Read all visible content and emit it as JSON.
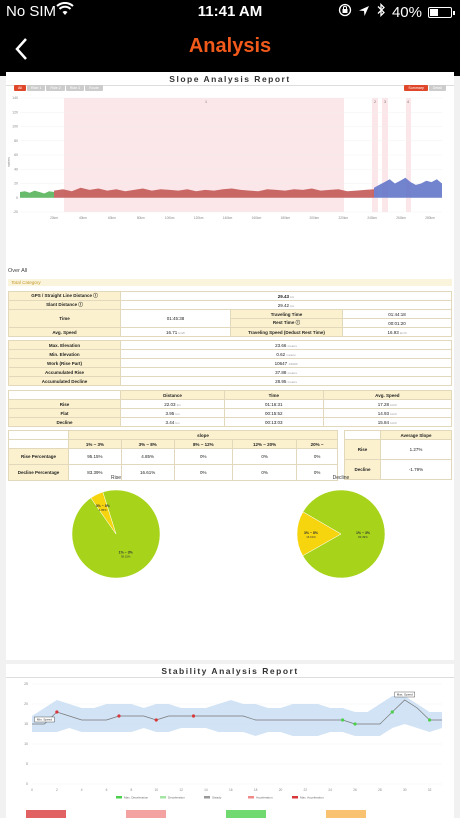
{
  "status": {
    "carrier": "No SIM",
    "time": "11:41 AM",
    "battery": "40%",
    "battery_level": 0.4
  },
  "nav": {
    "title": "Analysis"
  },
  "slope": {
    "heading": "Slope Analysis Report",
    "tabs": [
      "All",
      "Ride 1",
      "Ride 2",
      "Ride 3",
      "Route"
    ],
    "toggles": [
      "Summary",
      "Detail"
    ],
    "chart_data": {
      "type": "area",
      "ylabel": "meters",
      "y_ticks": [
        140,
        120,
        100,
        80,
        60,
        40,
        20,
        0,
        -20
      ],
      "ylim": [
        -20,
        140
      ],
      "x_ticks": [
        "20km",
        "40km",
        "60km",
        "80km",
        "100km",
        "120km",
        "140km",
        "160km",
        "180km",
        "200km",
        "220km",
        "240km",
        "260km",
        "280km"
      ],
      "segment_markers": [
        "1",
        "2",
        "3",
        "4"
      ],
      "series": [
        {
          "name": "Flat",
          "color": "#4caf50",
          "values": [
            8,
            9,
            7,
            10,
            8,
            6,
            9,
            8
          ]
        },
        {
          "name": "Rise",
          "color": "#c0504d",
          "values": [
            10,
            12,
            9,
            14,
            11,
            13,
            10,
            12,
            9,
            11,
            13,
            10,
            12,
            11,
            10,
            12,
            9,
            11,
            10,
            12,
            13,
            11,
            10,
            9,
            12,
            11,
            10,
            12,
            11,
            13,
            10,
            11,
            12,
            9,
            10,
            11,
            12
          ]
        },
        {
          "name": "Decline",
          "color": "#5b6fc7",
          "values": [
            14,
            18,
            22,
            26,
            20,
            24,
            28,
            22,
            18,
            20,
            24,
            22,
            26,
            20
          ]
        }
      ]
    },
    "over_all": "Over All",
    "total_category": "Total Category",
    "rows": {
      "gps_distance_label": "GPS / Straight Line Distance",
      "gps_distance_value": "29.43",
      "slant_distance_label": "Slant Distance",
      "slant_distance_value": "29.42",
      "unit_km": "km",
      "time_label": "Time",
      "time_value": "01:45:38",
      "traveling_time_label": "Traveling Time",
      "traveling_time_value": "01:44:18",
      "rest_time_label": "Rest Time",
      "rest_time_value": "00:01:20",
      "avg_speed_label": "Avg. Speed",
      "avg_speed_value": "16.71",
      "unit_kmh": "km/h",
      "traveling_speed_label": "Traveling Speed (Deduct Rest Time)",
      "traveling_speed_value": "16.93",
      "max_elev_label": "Max. Elevation",
      "max_elev_value": "23.66",
      "min_elev_label": "Min. Elevation",
      "min_elev_value": "0.62",
      "unit_m": "meters",
      "work_label": "Work (Rise Part)",
      "work_value": "10647",
      "unit_j": "J/1000",
      "acc_rise_label": "Accumulated Rise",
      "acc_rise_value": "37.88",
      "acc_decline_label": "Accumulated Decline",
      "acc_decline_value": "28.95"
    },
    "segments": {
      "headers": [
        "Distance",
        "Time",
        "Avg. Speed"
      ],
      "rows": [
        {
          "name": "Rise",
          "distance": "22.03",
          "time": "01:16:31",
          "speed": "17.28"
        },
        {
          "name": "Flat",
          "distance": "3.95",
          "time": "00:15:52",
          "speed": "14.93"
        },
        {
          "name": "Decline",
          "distance": "3.44",
          "time": "00:13:03",
          "speed": "15.84"
        }
      ]
    },
    "slope_table": {
      "title": "slope",
      "bins": [
        "1% ~ 3%",
        "3% ~ 8%",
        "8% ~ 12%",
        "12% ~ 20%",
        "20% ~"
      ],
      "rows": [
        {
          "name": "Rise Percentage",
          "values": [
            "95.15%",
            "4.85%",
            "0%",
            "0%",
            "0%"
          ]
        },
        {
          "name": "Decline Percentage",
          "values": [
            "83.39%",
            "16.61%",
            "0%",
            "0%",
            "0%"
          ]
        }
      ],
      "avg_title": "Average Slope",
      "avg_rows": [
        {
          "name": "Rise",
          "value": "1.27%"
        },
        {
          "name": "Decline",
          "value": "-1.79%"
        }
      ]
    },
    "pies": [
      {
        "title": "Rise",
        "slices": [
          {
            "label": "1% ~ 3%",
            "value": 95.15,
            "pct": "95.15%",
            "color": "#a7d41b"
          },
          {
            "label": "3% ~ 8%",
            "value": 4.85,
            "pct": "4.85%",
            "color": "#f7d50e"
          }
        ]
      },
      {
        "title": "Decline",
        "slices": [
          {
            "label": "1% ~ 3%",
            "value": 83.39,
            "pct": "83.39%",
            "color": "#a7d41b"
          },
          {
            "label": "3% ~ 8%",
            "value": 16.61,
            "pct": "16.61%",
            "color": "#f7d50e"
          }
        ]
      }
    ]
  },
  "stability": {
    "heading": "Stability Analysis Report",
    "chart_data": {
      "type": "line",
      "y_ticks": [
        25,
        20,
        15,
        10,
        5,
        0
      ],
      "ylim": [
        0,
        25
      ],
      "x_ticks": [
        "0",
        "1",
        "2",
        "3",
        "4",
        "5",
        "6",
        "7",
        "8",
        "9",
        "10",
        "11",
        "12",
        "13",
        "14",
        "15",
        "16",
        "17",
        "18",
        "19",
        "20",
        "21",
        "22",
        "23",
        "24",
        "25",
        "26",
        "27",
        "28",
        "29",
        "30",
        "31",
        "32",
        "33"
      ],
      "speed": [
        15,
        15,
        18,
        17,
        16,
        16,
        16,
        17,
        17,
        17,
        16,
        17,
        17,
        17,
        17,
        17,
        17,
        17,
        16,
        16,
        16,
        16,
        16,
        16,
        16,
        16,
        15,
        15,
        15,
        18,
        21,
        19,
        16,
        16
      ],
      "band_upper": [
        17,
        19,
        21,
        20,
        19,
        19,
        20,
        20,
        20,
        19,
        20,
        20,
        19,
        19,
        19,
        20,
        21,
        20,
        20,
        19,
        19,
        20,
        20,
        20,
        19,
        19,
        18,
        18,
        20,
        22,
        22,
        20,
        18,
        18
      ],
      "band_lower": [
        13,
        13,
        13,
        14,
        13,
        13,
        13,
        13,
        13,
        14,
        13,
        13,
        14,
        14,
        14,
        13,
        13,
        13,
        12,
        13,
        13,
        12,
        12,
        12,
        13,
        13,
        12,
        12,
        12,
        14,
        15,
        14,
        13,
        14
      ],
      "accel_points": [
        2,
        7,
        10,
        13
      ],
      "decel_points": [
        25,
        26,
        29,
        32
      ],
      "max_speed_label": "Max. Speed",
      "min_speed_label": "Min. Speed",
      "legend": [
        "Max. Deceleration",
        "Deceleration",
        "Steady",
        "Acceleration",
        "Max. Acceleration"
      ]
    }
  }
}
